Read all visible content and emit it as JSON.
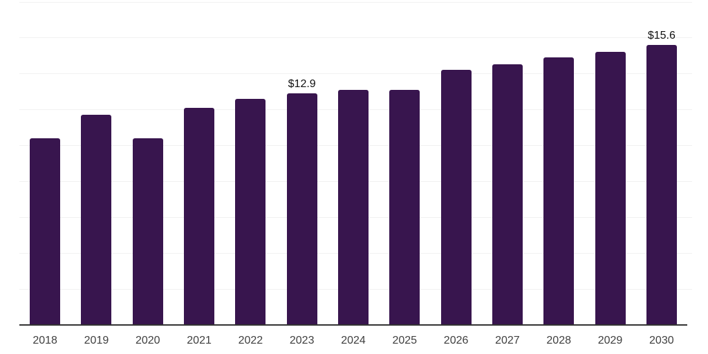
{
  "chart_data": {
    "type": "bar",
    "title": "",
    "xlabel": "",
    "ylabel": "",
    "categories": [
      "2018",
      "2019",
      "2020",
      "2021",
      "2022",
      "2023",
      "2024",
      "2025",
      "2026",
      "2027",
      "2028",
      "2029",
      "2030"
    ],
    "values": [
      10.4,
      11.7,
      10.4,
      12.1,
      12.6,
      12.9,
      13.1,
      13.1,
      14.2,
      14.5,
      14.9,
      15.2,
      15.6
    ],
    "annotations": [
      {
        "category": "2023",
        "label": "$12.9"
      },
      {
        "category": "2030",
        "label": "$15.6"
      }
    ],
    "ylim": [
      0,
      18
    ],
    "gridline_step": 2,
    "grid": true,
    "y_axis_labels_visible": false,
    "legend": "none",
    "colors": {
      "bar": "#38154E",
      "axis_line": "#333333",
      "gridline": "#F1F1F1",
      "tick_label": "#3F3F3F",
      "data_label": "#101010",
      "background": "#FFFFFF"
    }
  }
}
